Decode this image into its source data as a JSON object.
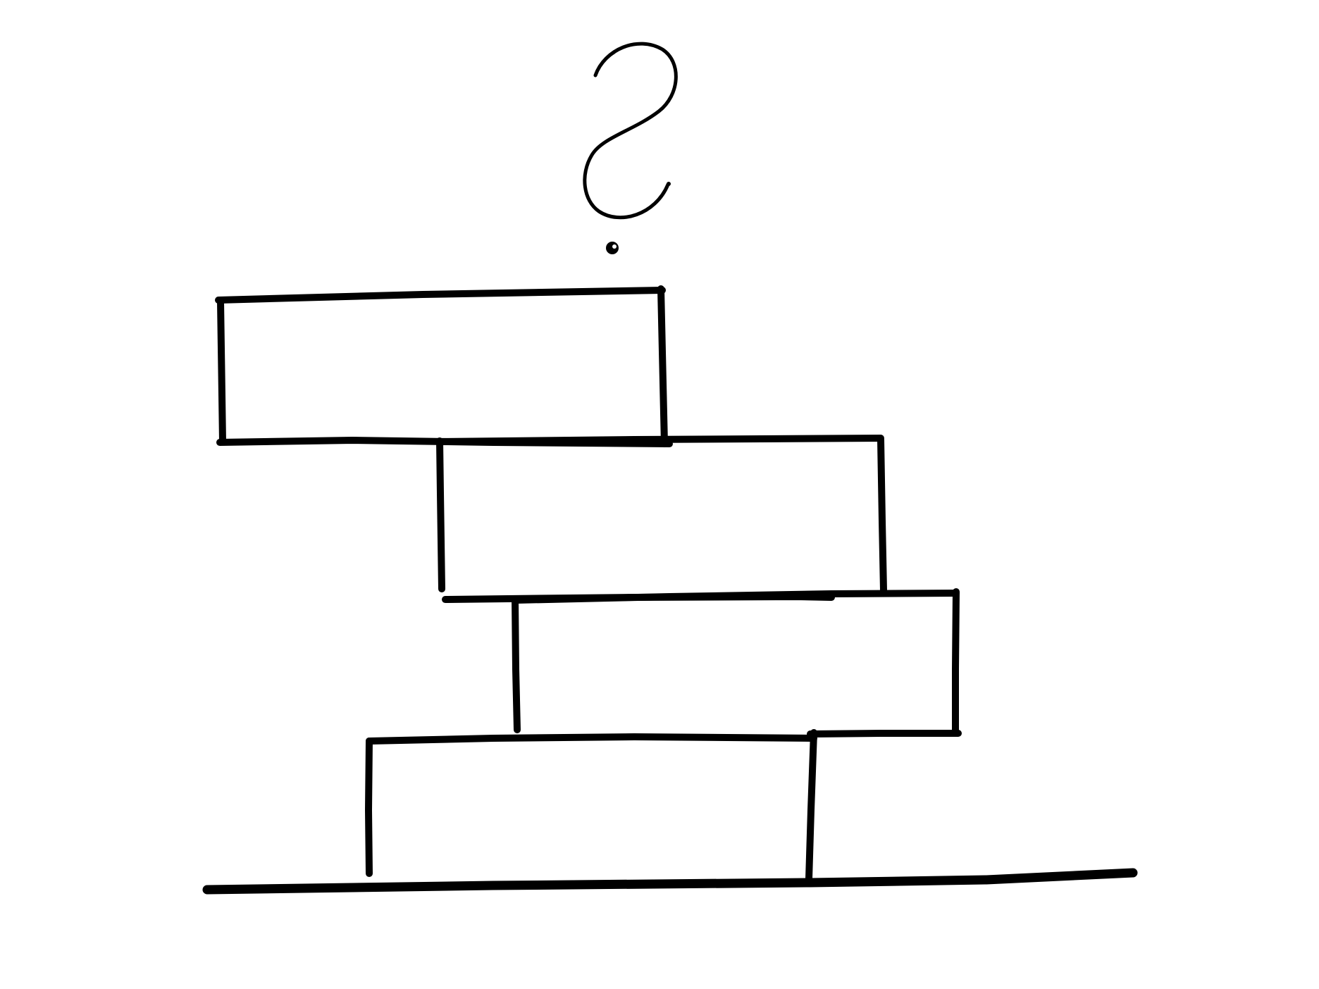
{
  "diagram": {
    "type": "stacked-blocks",
    "symbol": "?",
    "block_count": 4,
    "blocks": [
      {
        "position": "top"
      },
      {
        "position": "second"
      },
      {
        "position": "third"
      },
      {
        "position": "bottom"
      }
    ],
    "ground_line": true
  },
  "colors": {
    "background": "#ffffff",
    "ink": "#000000"
  }
}
